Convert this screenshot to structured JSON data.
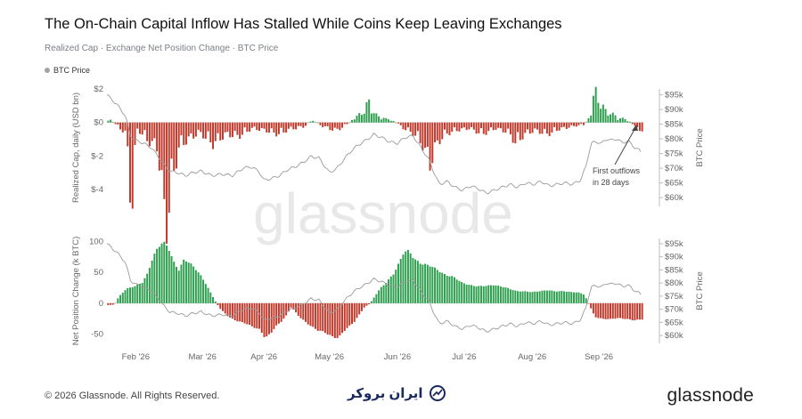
{
  "header": {
    "title": "The On-Chain Capital Inflow Has Stalled While Coins Keep Leaving Exchanges",
    "subtitle": "Realized Cap · Exchange Net Position Change · BTC Price"
  },
  "legend": {
    "label": "BTC Price",
    "color": "#a3a3a3"
  },
  "watermark": "glassnode",
  "footer": {
    "copyright": "© 2026 Glassnode. All Rights Reserved.",
    "brand_text": "ایران بروکر",
    "logo": "glassnode"
  },
  "colors": {
    "positive": "#2e9e4f",
    "negative": "#c0392b",
    "price": "#9a9a9a"
  },
  "chart_data": [
    {
      "type": "bar",
      "title": "",
      "ylabel": "Realized Cap, daily (USD bn)",
      "y2label": "BTC Price",
      "ylim": [
        -5,
        2
      ],
      "yticks": [
        {
          "v": 2,
          "label": "$2"
        },
        {
          "v": 0,
          "label": "$0"
        },
        {
          "v": -2,
          "label": "$-2"
        },
        {
          "v": -4,
          "label": "$-4"
        }
      ],
      "y2lim": [
        57000,
        97000
      ],
      "y2ticks": [
        {
          "v": 95000,
          "label": "$95k"
        },
        {
          "v": 90000,
          "label": "$90k"
        },
        {
          "v": 85000,
          "label": "$85k"
        },
        {
          "v": 80000,
          "label": "$80k"
        },
        {
          "v": 75000,
          "label": "$75k"
        },
        {
          "v": 70000,
          "label": "$70k"
        },
        {
          "v": 65000,
          "label": "$65k"
        },
        {
          "v": 60000,
          "label": "$60k"
        }
      ],
      "annotation": "First outflows in 28 days",
      "series_defs": [
        {
          "key": "rc",
          "kind": "bar",
          "points": [
            [
              0,
              0.2
            ],
            [
              6,
              -0.1
            ],
            [
              14,
              -0.6
            ],
            [
              18,
              -4.6
            ],
            [
              22,
              -0.3
            ],
            [
              30,
              -0.9
            ],
            [
              38,
              -1.3
            ],
            [
              44,
              -5.4
            ],
            [
              50,
              -2.6
            ],
            [
              54,
              -1.3
            ],
            [
              60,
              -0.9
            ],
            [
              70,
              -0.5
            ],
            [
              80,
              -1.1
            ],
            [
              90,
              -0.6
            ],
            [
              100,
              -0.7
            ],
            [
              110,
              -0.3
            ],
            [
              120,
              -0.4
            ],
            [
              130,
              -0.6
            ],
            [
              140,
              -0.3
            ],
            [
              150,
              -0.2
            ],
            [
              156,
              0.1
            ],
            [
              162,
              -0.1
            ],
            [
              168,
              -0.3
            ],
            [
              174,
              -0.4
            ],
            [
              180,
              -0.2
            ],
            [
              186,
              0.1
            ],
            [
              192,
              0.4
            ],
            [
              196,
              0.6
            ],
            [
              199,
              1.1
            ],
            [
              202,
              0.6
            ],
            [
              206,
              0.3
            ],
            [
              212,
              0.2
            ],
            [
              218,
              0.1
            ],
            [
              226,
              -0.3
            ],
            [
              234,
              -0.6
            ],
            [
              240,
              -1.1
            ],
            [
              246,
              -2.1
            ],
            [
              252,
              -1.0
            ],
            [
              258,
              -0.6
            ],
            [
              266,
              -0.4
            ],
            [
              276,
              -0.3
            ],
            [
              286,
              -0.6
            ],
            [
              296,
              -0.3
            ],
            [
              306,
              -0.5
            ],
            [
              312,
              -1.1
            ],
            [
              318,
              -0.6
            ],
            [
              326,
              -0.4
            ],
            [
              336,
              -0.6
            ],
            [
              346,
              -0.3
            ],
            [
              356,
              -0.2
            ],
            [
              364,
              -0.1
            ],
            [
              368,
              0.3
            ],
            [
              372,
              1.6
            ],
            [
              376,
              1.0
            ],
            [
              380,
              0.6
            ],
            [
              386,
              0.4
            ],
            [
              392,
              0.2
            ],
            [
              398,
              0.1
            ],
            [
              404,
              -0.3
            ],
            [
              408,
              -0.4
            ]
          ]
        },
        {
          "key": "price",
          "kind": "line",
          "points": [
            [
              0,
              95000
            ],
            [
              8,
              91500
            ],
            [
              14,
              88000
            ],
            [
              18,
              81000
            ],
            [
              22,
              79500
            ],
            [
              28,
              78500
            ],
            [
              34,
              77000
            ],
            [
              40,
              73500
            ],
            [
              44,
              71000
            ],
            [
              48,
              69000
            ],
            [
              54,
              68500
            ],
            [
              60,
              67500
            ],
            [
              66,
              68500
            ],
            [
              72,
              69000
            ],
            [
              80,
              67500
            ],
            [
              88,
              68000
            ],
            [
              96,
              67500
            ],
            [
              104,
              70000
            ],
            [
              110,
              70500
            ],
            [
              116,
              69000
            ],
            [
              120,
              66000
            ],
            [
              126,
              66500
            ],
            [
              132,
              67500
            ],
            [
              138,
              69500
            ],
            [
              144,
              70500
            ],
            [
              150,
              72000
            ],
            [
              156,
              74000
            ],
            [
              162,
              73500
            ],
            [
              166,
              71000
            ],
            [
              170,
              68500
            ],
            [
              176,
              70000
            ],
            [
              182,
              73500
            ],
            [
              188,
              76500
            ],
            [
              194,
              78500
            ],
            [
              198,
              79500
            ],
            [
              204,
              81500
            ],
            [
              210,
              80500
            ],
            [
              216,
              79000
            ],
            [
              222,
              78500
            ],
            [
              228,
              80500
            ],
            [
              234,
              81000
            ],
            [
              240,
              77000
            ],
            [
              246,
              73000
            ],
            [
              250,
              68500
            ],
            [
              254,
              64500
            ],
            [
              260,
              65500
            ],
            [
              266,
              63500
            ],
            [
              272,
              62500
            ],
            [
              278,
              64000
            ],
            [
              284,
              63000
            ],
            [
              290,
              61500
            ],
            [
              296,
              62500
            ],
            [
              302,
              63500
            ],
            [
              308,
              64500
            ],
            [
              314,
              63500
            ],
            [
              320,
              65000
            ],
            [
              326,
              64500
            ],
            [
              332,
              65500
            ],
            [
              338,
              64000
            ],
            [
              344,
              64500
            ],
            [
              350,
              65000
            ],
            [
              356,
              64500
            ],
            [
              362,
              66000
            ],
            [
              366,
              70500
            ],
            [
              370,
              78500
            ],
            [
              374,
              79000
            ],
            [
              378,
              78500
            ],
            [
              382,
              80000
            ],
            [
              386,
              79500
            ],
            [
              390,
              80000
            ],
            [
              394,
              78500
            ],
            [
              398,
              79500
            ],
            [
              402,
              77500
            ],
            [
              406,
              76500
            ],
            [
              408,
              75500
            ]
          ]
        }
      ]
    },
    {
      "type": "bar",
      "title": "",
      "ylabel": "Net Position Change (k BTC)",
      "y2label": "BTC Price",
      "ylim": [
        -65,
        105
      ],
      "yticks": [
        {
          "v": 100,
          "label": "100"
        },
        {
          "v": 50,
          "label": "50"
        },
        {
          "v": 0,
          "label": "0"
        },
        {
          "v": -50,
          "label": "-50"
        }
      ],
      "y2lim": [
        57000,
        97000
      ],
      "y2ticks": [
        {
          "v": 95000,
          "label": "$95k"
        },
        {
          "v": 90000,
          "label": "$90k"
        },
        {
          "v": 85000,
          "label": "$85k"
        },
        {
          "v": 80000,
          "label": "$80k"
        },
        {
          "v": 75000,
          "label": "$75k"
        },
        {
          "v": 70000,
          "label": "$70k"
        },
        {
          "v": 65000,
          "label": "$65k"
        },
        {
          "v": 60000,
          "label": "$60k"
        }
      ],
      "xticks": [
        {
          "day": 22,
          "label": "Feb '26"
        },
        {
          "day": 73,
          "label": "Mar '26"
        },
        {
          "day": 120,
          "label": "Apr '26"
        },
        {
          "day": 170,
          "label": "May '26"
        },
        {
          "day": 222,
          "label": "Jun '26"
        },
        {
          "day": 273,
          "label": "Jul '26"
        },
        {
          "day": 325,
          "label": "Aug '26"
        },
        {
          "day": 376,
          "label": "Sep '26"
        }
      ],
      "series_defs": [
        {
          "key": "np",
          "kind": "bar",
          "points": [
            [
              0,
              -3
            ],
            [
              5,
              -2
            ],
            [
              8,
              10
            ],
            [
              14,
              24
            ],
            [
              20,
              27
            ],
            [
              26,
              33
            ],
            [
              30,
              48
            ],
            [
              34,
              74
            ],
            [
              38,
              90
            ],
            [
              42,
              98
            ],
            [
              46,
              90
            ],
            [
              50,
              68
            ],
            [
              54,
              54
            ],
            [
              58,
              70
            ],
            [
              62,
              65
            ],
            [
              66,
              58
            ],
            [
              70,
              48
            ],
            [
              74,
              34
            ],
            [
              78,
              18
            ],
            [
              82,
              3
            ],
            [
              86,
              -10
            ],
            [
              92,
              -22
            ],
            [
              98,
              -28
            ],
            [
              104,
              -32
            ],
            [
              110,
              -38
            ],
            [
              116,
              -42
            ],
            [
              120,
              -56
            ],
            [
              124,
              -50
            ],
            [
              128,
              -38
            ],
            [
              132,
              -30
            ],
            [
              136,
              -20
            ],
            [
              140,
              -6
            ],
            [
              146,
              -22
            ],
            [
              152,
              -32
            ],
            [
              156,
              -38
            ],
            [
              160,
              -44
            ],
            [
              166,
              -48
            ],
            [
              172,
              -54
            ],
            [
              176,
              -56
            ],
            [
              180,
              -46
            ],
            [
              184,
              -38
            ],
            [
              188,
              -30
            ],
            [
              192,
              -18
            ],
            [
              196,
              -6
            ],
            [
              200,
              -1
            ],
            [
              204,
              12
            ],
            [
              208,
              24
            ],
            [
              212,
              32
            ],
            [
              218,
              48
            ],
            [
              222,
              64
            ],
            [
              226,
              82
            ],
            [
              230,
              84
            ],
            [
              234,
              72
            ],
            [
              240,
              64
            ],
            [
              246,
              60
            ],
            [
              252,
              54
            ],
            [
              258,
              46
            ],
            [
              264,
              42
            ],
            [
              270,
              34
            ],
            [
              276,
              30
            ],
            [
              282,
              27
            ],
            [
              288,
              28
            ],
            [
              294,
              30
            ],
            [
              300,
              27
            ],
            [
              306,
              24
            ],
            [
              312,
              20
            ],
            [
              318,
              19
            ],
            [
              324,
              18
            ],
            [
              330,
              20
            ],
            [
              336,
              21
            ],
            [
              342,
              19
            ],
            [
              348,
              20
            ],
            [
              354,
              18
            ],
            [
              360,
              17
            ],
            [
              364,
              14
            ],
            [
              368,
              -4
            ],
            [
              372,
              -22
            ],
            [
              378,
              -25
            ],
            [
              384,
              -26
            ],
            [
              390,
              -24
            ],
            [
              396,
              -25
            ],
            [
              402,
              -28
            ],
            [
              406,
              -27
            ],
            [
              408,
              -26
            ]
          ]
        }
      ]
    }
  ]
}
